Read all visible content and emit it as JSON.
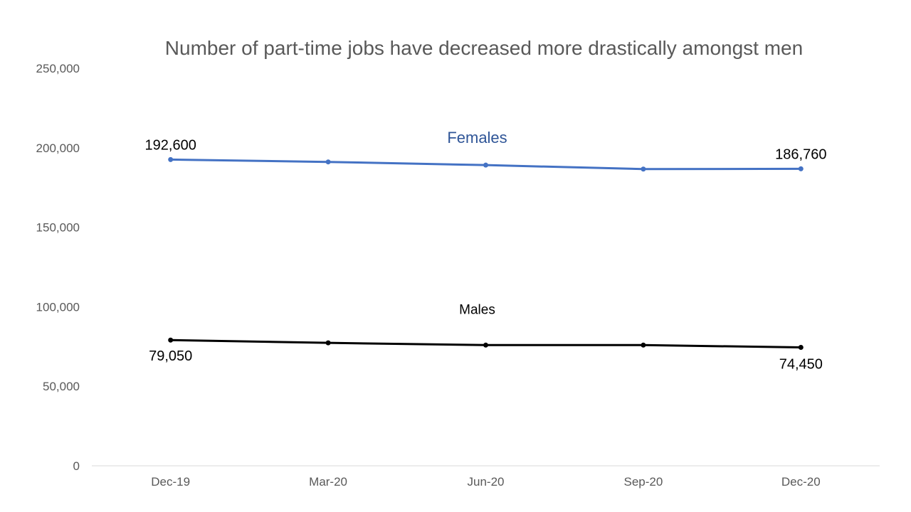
{
  "chart_data": {
    "type": "line",
    "title": "Number of part-time jobs have decreased more drastically amongst men",
    "xlabel": "",
    "ylabel": "",
    "categories": [
      "Dec-19",
      "Mar-20",
      "Jun-20",
      "Sep-20",
      "Dec-20"
    ],
    "ylim": [
      0,
      250000
    ],
    "y_ticks": [
      {
        "value": 0,
        "label": "0"
      },
      {
        "value": 50000,
        "label": "50,000"
      },
      {
        "value": 100000,
        "label": "100,000"
      },
      {
        "value": 150000,
        "label": "150,000"
      },
      {
        "value": 200000,
        "label": "200,000"
      },
      {
        "value": 250000,
        "label": "250,000"
      }
    ],
    "grid": false,
    "legend": "none",
    "series": [
      {
        "name": "Females",
        "color": "#4472c4",
        "label_color": "#2f5597",
        "values": [
          192600,
          191100,
          189100,
          186600,
          186760
        ],
        "first_label": "192,600",
        "last_label": "186,760"
      },
      {
        "name": "Males",
        "color": "#000000",
        "label_color": "#000000",
        "values": [
          79050,
          77300,
          75900,
          75900,
          74450
        ],
        "first_label": "79,050",
        "last_label": "74,450"
      }
    ]
  }
}
